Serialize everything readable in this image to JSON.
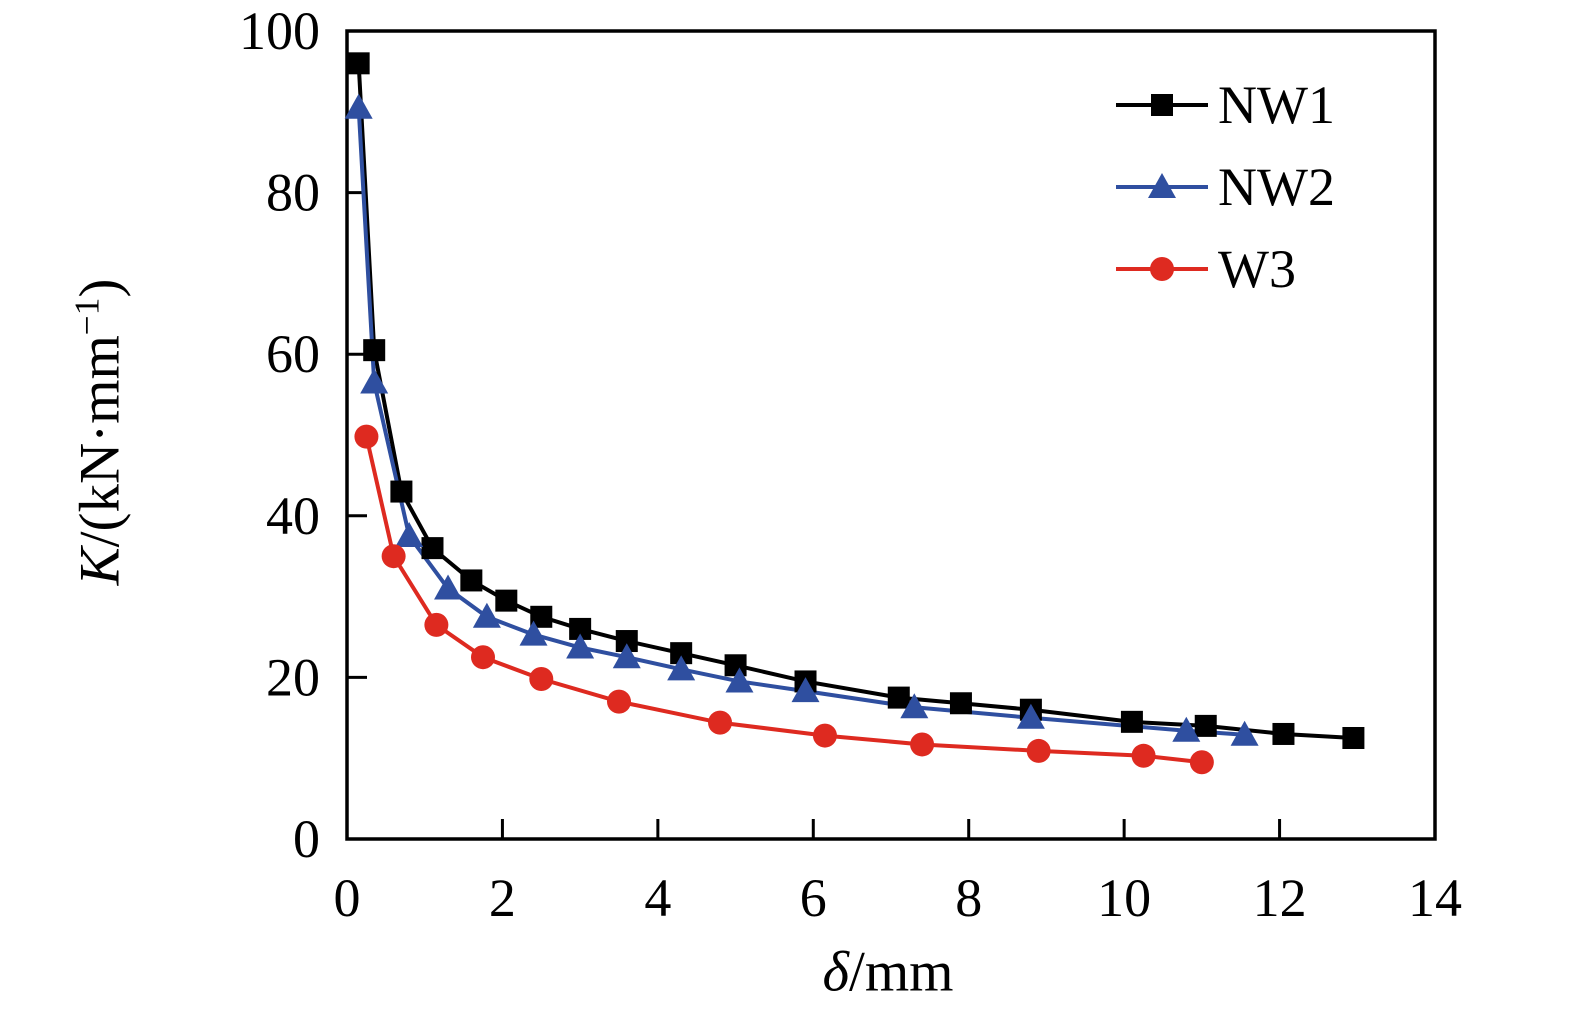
{
  "figure": {
    "background": "#ffffff",
    "axis_color": "#000000"
  },
  "chart_data": {
    "type": "line",
    "title": "",
    "xlabel": "δ/mm",
    "ylabel": "K/(kN·mm−1)",
    "xlabel_parts": {
      "var": "δ",
      "post": "/mm"
    },
    "ylabel_parts": {
      "var": "K",
      "pre": "/(kN·mm",
      "sup": "−1",
      "post": ")"
    },
    "xlim": [
      0,
      14
    ],
    "ylim": [
      0,
      100
    ],
    "x_ticks": [
      0,
      2,
      4,
      6,
      8,
      10,
      12,
      14
    ],
    "y_ticks": [
      0,
      20,
      40,
      60,
      80,
      100
    ],
    "grid": false,
    "legend_position": "top-right-inside",
    "series": [
      {
        "name": "NW1",
        "color": "#000000",
        "marker": "square",
        "points": [
          [
            0.15,
            96
          ],
          [
            0.35,
            60.5
          ],
          [
            0.7,
            43
          ],
          [
            1.1,
            36
          ],
          [
            1.6,
            32
          ],
          [
            2.05,
            29.5
          ],
          [
            2.5,
            27.5
          ],
          [
            3.0,
            26
          ],
          [
            3.6,
            24.5
          ],
          [
            4.3,
            23
          ],
          [
            5.0,
            21.5
          ],
          [
            5.9,
            19.5
          ],
          [
            7.1,
            17.5
          ],
          [
            7.9,
            16.8
          ],
          [
            8.8,
            16
          ],
          [
            10.1,
            14.5
          ],
          [
            11.05,
            14
          ],
          [
            12.05,
            13
          ],
          [
            12.95,
            12.5
          ]
        ]
      },
      {
        "name": "NW2",
        "color": "#2F4FA0",
        "marker": "triangle",
        "points": [
          [
            0.15,
            90.5
          ],
          [
            0.35,
            56.5
          ],
          [
            0.8,
            37.5
          ],
          [
            1.3,
            31
          ],
          [
            1.8,
            27.5
          ],
          [
            2.4,
            25.3
          ],
          [
            3.0,
            23.7
          ],
          [
            3.6,
            22.5
          ],
          [
            4.3,
            21
          ],
          [
            5.05,
            19.5
          ],
          [
            5.9,
            18.3
          ],
          [
            7.3,
            16.3
          ],
          [
            8.8,
            15
          ],
          [
            10.8,
            13.4
          ],
          [
            11.55,
            12.9
          ]
        ]
      },
      {
        "name": "W3",
        "color": "#DE2A20",
        "marker": "circle",
        "points": [
          [
            0.25,
            49.8
          ],
          [
            0.6,
            35
          ],
          [
            1.15,
            26.5
          ],
          [
            1.75,
            22.5
          ],
          [
            2.5,
            19.8
          ],
          [
            3.5,
            17
          ],
          [
            4.8,
            14.4
          ],
          [
            6.15,
            12.8
          ],
          [
            7.4,
            11.7
          ],
          [
            8.9,
            10.9
          ],
          [
            10.25,
            10.3
          ],
          [
            11.0,
            9.5
          ]
        ]
      }
    ]
  }
}
